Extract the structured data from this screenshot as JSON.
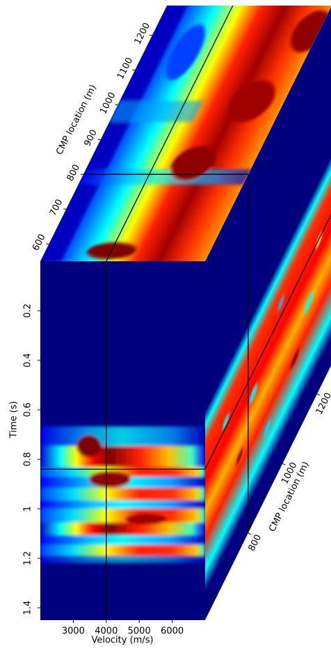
{
  "chart_data": {
    "type": "cube",
    "front": {
      "xlabel": "Velocity (m/s)",
      "ylabel": "Time (s)",
      "xlim": [
        2000,
        7000
      ],
      "xticks": [
        3000,
        4000,
        5000,
        6000
      ],
      "ylim": [
        0,
        1.45
      ],
      "yticks": [
        0.2,
        0.4,
        0.6,
        0.8,
        1,
        1.2,
        1.4
      ]
    },
    "top": {
      "label": "CMP location (m)",
      "lim": [
        550,
        1285
      ],
      "ticks": [
        600,
        700,
        800,
        900,
        1000,
        1100,
        1200
      ]
    },
    "side": {
      "label": "CMP location (m)",
      "ticks": [
        800,
        1000,
        1200
      ]
    },
    "slices": {
      "velocity": 4000,
      "time": 0.84,
      "cmp": 800
    }
  }
}
